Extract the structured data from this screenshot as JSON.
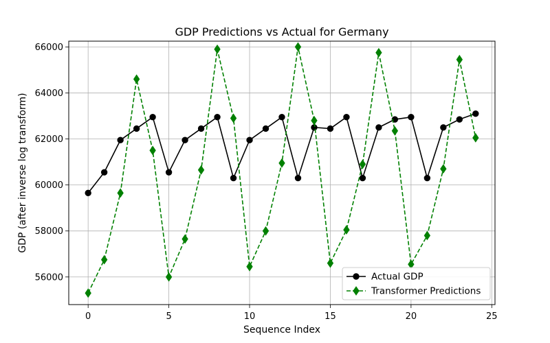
{
  "chart_data": {
    "type": "line",
    "title": "GDP Predictions vs Actual for Germany",
    "xlabel": "Sequence Index",
    "ylabel": "GDP (after inverse log transform)",
    "xlim": [
      -1.2,
      25.2
    ],
    "ylim": [
      54800,
      66250
    ],
    "xticks": [
      0,
      5,
      10,
      15,
      20,
      25
    ],
    "yticks": [
      56000,
      58000,
      60000,
      62000,
      64000,
      66000
    ],
    "grid": true,
    "legend_position": "lower-right",
    "x": [
      0,
      1,
      2,
      3,
      4,
      5,
      6,
      7,
      8,
      9,
      10,
      11,
      12,
      13,
      14,
      15,
      16,
      17,
      18,
      19,
      20,
      21,
      22,
      23,
      24
    ],
    "series": [
      {
        "name": "Actual GDP",
        "color": "#000000",
        "marker": "circle",
        "line_style": "solid",
        "values": [
          59650,
          60550,
          61950,
          62450,
          62950,
          60550,
          61950,
          62450,
          62950,
          60300,
          61950,
          62450,
          62950,
          60300,
          62500,
          62450,
          62950,
          60300,
          62500,
          62850,
          62950,
          60300,
          62500,
          62850,
          63100
        ]
      },
      {
        "name": "Transformer Predictions",
        "color": "#008000",
        "marker": "diamond",
        "line_style": "dashed",
        "values": [
          55300,
          56750,
          59650,
          64600,
          61500,
          56000,
          57650,
          60650,
          65900,
          62900,
          56450,
          58000,
          60950,
          66000,
          62800,
          56600,
          58050,
          60900,
          65750,
          62350,
          56550,
          57800,
          60700,
          65450,
          62050
        ]
      }
    ]
  }
}
